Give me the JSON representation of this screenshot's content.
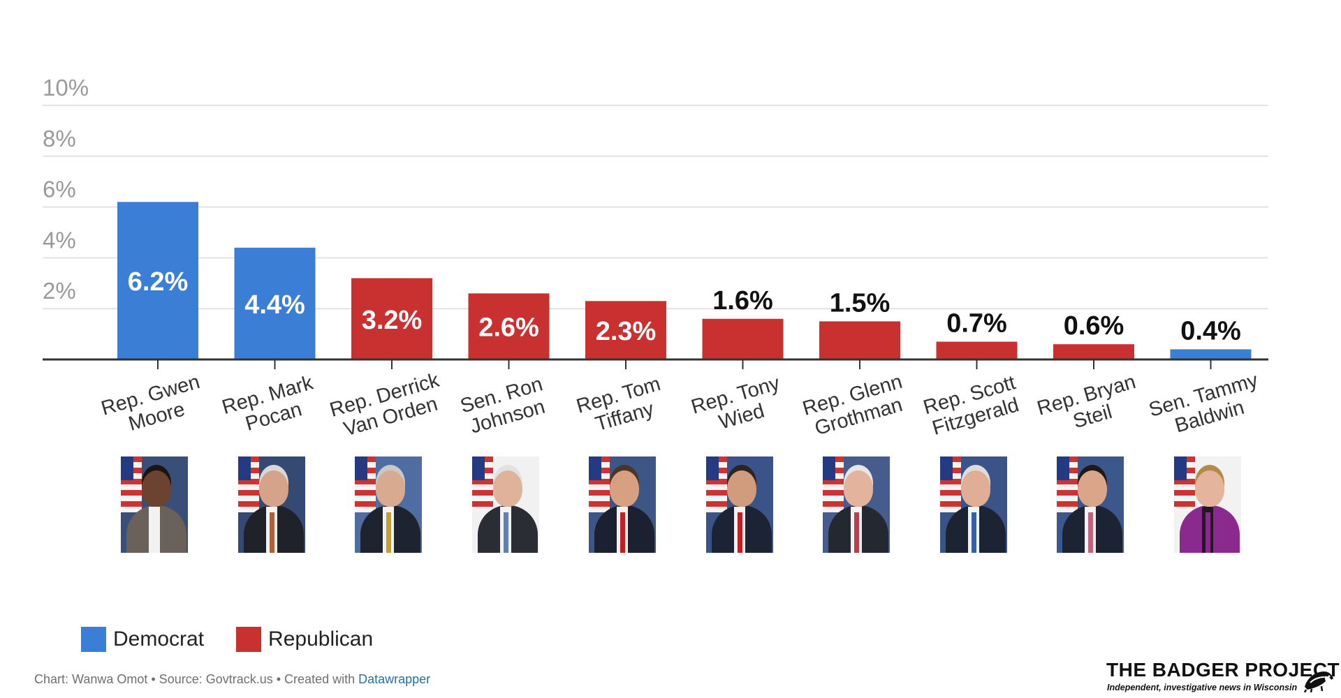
{
  "chart_data": {
    "type": "bar",
    "ylim": [
      0,
      10
    ],
    "yticks": [
      "2%",
      "4%",
      "6%",
      "8%",
      "10%"
    ],
    "ytick_values": [
      2,
      4,
      6,
      8,
      10
    ],
    "grid": true,
    "categories": [
      [
        "Rep. Gwen",
        "Moore"
      ],
      [
        "Rep. Mark",
        "Pocan"
      ],
      [
        "Rep. Derrick",
        "Van Orden"
      ],
      [
        "Sen. Ron",
        "Johnson"
      ],
      [
        "Rep. Tom",
        "Tiffany"
      ],
      [
        "Rep. Tony",
        "Wied"
      ],
      [
        "Rep. Glenn",
        "Grothman"
      ],
      [
        "Rep. Scott",
        "Fitzgerald"
      ],
      [
        "Rep. Bryan",
        "Steil"
      ],
      [
        "Sen. Tammy",
        "Baldwin"
      ]
    ],
    "values": [
      6.2,
      4.4,
      3.2,
      2.6,
      2.3,
      1.6,
      1.5,
      0.7,
      0.6,
      0.4
    ],
    "value_labels": [
      "6.2%",
      "4.4%",
      "3.2%",
      "2.6%",
      "2.3%",
      "1.6%",
      "1.5%",
      "0.7%",
      "0.6%",
      "0.4%"
    ],
    "party": [
      "Democrat",
      "Democrat",
      "Republican",
      "Republican",
      "Republican",
      "Republican",
      "Republican",
      "Republican",
      "Republican",
      "Democrat"
    ],
    "legend": [
      {
        "name": "Democrat",
        "color": "#3a7fd5"
      },
      {
        "name": "Republican",
        "color": "#c8312f"
      }
    ],
    "legend_placement": "bottom-left"
  },
  "photos": [
    {
      "name": "rep-gwen-moore-photo",
      "skin": "#6b4330",
      "hair": "#1a1412",
      "suit": "#6a625a",
      "shirt": "#f2f2f2",
      "tie": "#f2f2f2",
      "bg": "#3a4f78"
    },
    {
      "name": "rep-mark-pocan-photo",
      "skin": "#d4a389",
      "hair": "#d8d8d8",
      "suit": "#1f2228",
      "shirt": "#f2f2f2",
      "tie": "#b0603a",
      "bg": "#344a72"
    },
    {
      "name": "rep-derrick-van-orden-photo",
      "skin": "#d8ab91",
      "hair": "#c8c8c8",
      "suit": "#1e2330",
      "shirt": "#f2f2f2",
      "tie": "#c7a02a",
      "bg": "#4f6da1"
    },
    {
      "name": "sen-ron-johnson-photo",
      "skin": "#dfb29a",
      "hair": "#e2e2e2",
      "suit": "#2a2d33",
      "shirt": "#f2f2f2",
      "tie": "#5c7fbf",
      "bg": "#f1f1f1"
    },
    {
      "name": "rep-tom-tiffany-photo",
      "skin": "#d6a081",
      "hair": "#4a3527",
      "suit": "#1b2130",
      "shirt": "#f2f2f2",
      "tie": "#c41e25",
      "bg": "#3d5686"
    },
    {
      "name": "rep-tony-wied-photo",
      "skin": "#cf9d7e",
      "hair": "#2b2420",
      "suit": "#1b2335",
      "shirt": "#f2f2f2",
      "tie": "#c41e25",
      "bg": "#3a548a"
    },
    {
      "name": "rep-glenn-grothman-photo",
      "skin": "#e3b39d",
      "hair": "#e6e6e6",
      "suit": "#242831",
      "shirt": "#f2f2f2",
      "tie": "#c43a4a",
      "bg": "#455c8c"
    },
    {
      "name": "rep-scott-fitzgerald-photo",
      "skin": "#e0ae95",
      "hair": "#dcdcdc",
      "suit": "#1c2434",
      "shirt": "#f2f2f2",
      "tie": "#2f5fb8",
      "bg": "#3b5487"
    },
    {
      "name": "rep-bryan-steil-photo",
      "skin": "#d9a68a",
      "hair": "#1f1a17",
      "suit": "#1c2332",
      "shirt": "#f2f2f2",
      "tie": "#c2637a",
      "bg": "#3c578c"
    },
    {
      "name": "sen-tammy-baldwin-photo",
      "skin": "#e4b59c",
      "hair": "#b48a4b",
      "suit": "#8a2a8e",
      "shirt": "#1c1c1c",
      "tie": "#8a2a8e",
      "bg": "#f2f2f2"
    }
  ],
  "credit": {
    "text": "Chart: Wanwa Omot • Source: Govtrack.us • Created with ",
    "link": "Datawrapper"
  },
  "branding": {
    "title": "THE BADGER PROJECT",
    "tagline": "Independent, investigative news in Wisconsin",
    "icon": "badger-icon"
  }
}
